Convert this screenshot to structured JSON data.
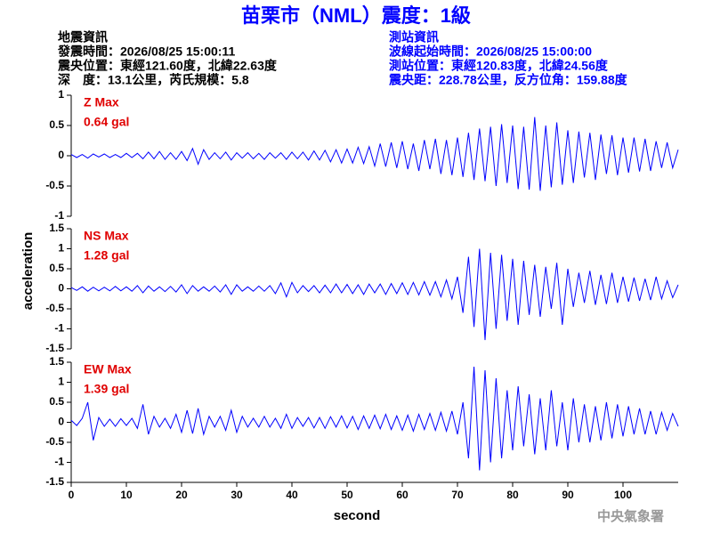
{
  "header": {
    "title": "苗栗市（NML）震度：1級",
    "left": [
      "地震資訊",
      "發震時間：2026/08/25 15:00:11",
      "震央位置：東經121.60度，北緯22.63度",
      "深　度：13.1公里，芮氏規模：5.8"
    ],
    "right": [
      "測站資訊",
      "波線起始時間：2026/08/25 15:00:00",
      "測站位置：東經120.83度，北緯24.56度",
      "震央距：228.78公里，反方位角：159.88度"
    ],
    "footer": "中央氣象署"
  },
  "chart_data": [
    {
      "type": "line",
      "annotations": [
        "Z Max",
        "0.64 gal"
      ],
      "annotation_color": "#e00000",
      "color": "#0000ff",
      "xlim": [
        0,
        110
      ],
      "ylim": [
        -1,
        1
      ],
      "yticks": [
        -1,
        -0.5,
        0,
        0.5,
        1
      ],
      "x": [
        0,
        1,
        2,
        3,
        4,
        5,
        6,
        7,
        8,
        9,
        10,
        11,
        12,
        13,
        14,
        15,
        16,
        17,
        18,
        19,
        20,
        21,
        22,
        23,
        24,
        25,
        26,
        27,
        28,
        29,
        30,
        31,
        32,
        33,
        34,
        35,
        36,
        37,
        38,
        39,
        40,
        41,
        42,
        43,
        44,
        45,
        46,
        47,
        48,
        49,
        50,
        51,
        52,
        53,
        54,
        55,
        56,
        57,
        58,
        59,
        60,
        61,
        62,
        63,
        64,
        65,
        66,
        67,
        68,
        69,
        70,
        71,
        72,
        73,
        74,
        75,
        76,
        77,
        78,
        79,
        80,
        81,
        82,
        83,
        84,
        85,
        86,
        87,
        88,
        89,
        90,
        91,
        92,
        93,
        94,
        95,
        96,
        97,
        98,
        99,
        100,
        101,
        102,
        103,
        104,
        105,
        106,
        107,
        108,
        109,
        110
      ],
      "values": [
        0.02,
        -0.03,
        0.02,
        -0.04,
        0.03,
        -0.02,
        0.03,
        -0.03,
        0.02,
        -0.03,
        0.04,
        -0.03,
        0.04,
        -0.05,
        0.06,
        -0.05,
        0.07,
        -0.06,
        0.05,
        -0.06,
        0.07,
        -0.08,
        0.12,
        -0.14,
        0.1,
        -0.06,
        0.05,
        -0.05,
        0.06,
        -0.07,
        0.05,
        -0.04,
        0.05,
        -0.05,
        0.04,
        -0.06,
        0.05,
        -0.04,
        0.05,
        -0.06,
        0.06,
        -0.05,
        0.06,
        -0.07,
        0.08,
        -0.07,
        0.09,
        -0.1,
        0.1,
        -0.12,
        0.11,
        -0.12,
        0.14,
        -0.13,
        0.15,
        -0.17,
        0.2,
        -0.18,
        0.22,
        -0.2,
        0.24,
        -0.22,
        0.2,
        -0.25,
        0.26,
        -0.22,
        0.28,
        -0.3,
        0.26,
        -0.32,
        0.3,
        -0.35,
        0.38,
        -0.4,
        0.45,
        -0.42,
        0.48,
        -0.5,
        0.52,
        -0.45,
        0.5,
        -0.55,
        0.48,
        -0.56,
        0.64,
        -0.58,
        0.5,
        -0.52,
        0.55,
        -0.48,
        0.42,
        -0.45,
        0.4,
        -0.36,
        0.38,
        -0.4,
        0.35,
        -0.3,
        0.34,
        -0.32,
        0.3,
        -0.28,
        0.3,
        -0.26,
        0.28,
        -0.25,
        0.24,
        -0.2,
        0.22,
        -0.2,
        0.1
      ]
    },
    {
      "type": "line",
      "ylabel": "acceleration",
      "annotations": [
        "NS Max",
        "1.28 gal"
      ],
      "annotation_color": "#e00000",
      "color": "#0000ff",
      "xlim": [
        0,
        110
      ],
      "ylim": [
        -1.5,
        1.5
      ],
      "yticks": [
        -1.5,
        -1,
        -0.5,
        0,
        0.5,
        1,
        1.5
      ],
      "x": [
        0,
        1,
        2,
        3,
        4,
        5,
        6,
        7,
        8,
        9,
        10,
        11,
        12,
        13,
        14,
        15,
        16,
        17,
        18,
        19,
        20,
        21,
        22,
        23,
        24,
        25,
        26,
        27,
        28,
        29,
        30,
        31,
        32,
        33,
        34,
        35,
        36,
        37,
        38,
        39,
        40,
        41,
        42,
        43,
        44,
        45,
        46,
        47,
        48,
        49,
        50,
        51,
        52,
        53,
        54,
        55,
        56,
        57,
        58,
        59,
        60,
        61,
        62,
        63,
        64,
        65,
        66,
        67,
        68,
        69,
        70,
        71,
        72,
        73,
        74,
        75,
        76,
        77,
        78,
        79,
        80,
        81,
        82,
        83,
        84,
        85,
        86,
        87,
        88,
        89,
        90,
        91,
        92,
        93,
        94,
        95,
        96,
        97,
        98,
        99,
        100,
        101,
        102,
        103,
        104,
        105,
        106,
        107,
        108,
        109,
        110
      ],
      "values": [
        0.03,
        -0.04,
        0.05,
        -0.06,
        0.04,
        -0.05,
        0.04,
        -0.05,
        0.06,
        -0.05,
        0.05,
        -0.06,
        0.08,
        -0.1,
        0.07,
        -0.06,
        0.05,
        -0.07,
        0.06,
        -0.08,
        0.1,
        -0.12,
        0.08,
        -0.06,
        0.05,
        -0.06,
        0.07,
        -0.08,
        0.1,
        -0.14,
        0.1,
        -0.06,
        0.05,
        -0.06,
        0.07,
        -0.06,
        0.08,
        -0.12,
        0.15,
        -0.2,
        0.16,
        -0.1,
        0.08,
        -0.07,
        0.08,
        -0.1,
        0.09,
        -0.1,
        0.12,
        -0.1,
        0.11,
        -0.12,
        0.1,
        -0.14,
        0.12,
        -0.1,
        0.12,
        -0.14,
        0.13,
        -0.12,
        0.15,
        -0.14,
        0.16,
        -0.15,
        0.18,
        -0.16,
        0.18,
        -0.2,
        0.22,
        -0.25,
        0.3,
        -0.6,
        0.8,
        -0.95,
        1.0,
        -1.28,
        0.9,
        -1.0,
        0.85,
        -0.8,
        0.75,
        -0.9,
        0.7,
        -0.65,
        0.6,
        -0.7,
        0.55,
        -0.5,
        0.65,
        -0.9,
        0.5,
        -0.45,
        0.4,
        -0.35,
        0.45,
        -0.4,
        0.35,
        -0.38,
        0.4,
        -0.35,
        0.3,
        -0.32,
        0.28,
        -0.3,
        0.25,
        -0.28,
        0.3,
        -0.25,
        0.2,
        -0.22,
        0.1
      ]
    },
    {
      "type": "line",
      "xlabel": "second",
      "annotations": [
        "EW Max",
        "1.39 gal"
      ],
      "annotation_color": "#e00000",
      "color": "#0000ff",
      "xlim": [
        0,
        110
      ],
      "xticks": [
        0,
        10,
        20,
        30,
        40,
        50,
        60,
        70,
        80,
        90,
        100
      ],
      "ylim": [
        -1.5,
        1.5
      ],
      "yticks": [
        -1.5,
        -1,
        -0.5,
        0,
        0.5,
        1,
        1.5
      ],
      "x": [
        0,
        1,
        2,
        3,
        4,
        5,
        6,
        7,
        8,
        9,
        10,
        11,
        12,
        13,
        14,
        15,
        16,
        17,
        18,
        19,
        20,
        21,
        22,
        23,
        24,
        25,
        26,
        27,
        28,
        29,
        30,
        31,
        32,
        33,
        34,
        35,
        36,
        37,
        38,
        39,
        40,
        41,
        42,
        43,
        44,
        45,
        46,
        47,
        48,
        49,
        50,
        51,
        52,
        53,
        54,
        55,
        56,
        57,
        58,
        59,
        60,
        61,
        62,
        63,
        64,
        65,
        66,
        67,
        68,
        69,
        70,
        71,
        72,
        73,
        74,
        75,
        76,
        77,
        78,
        79,
        80,
        81,
        82,
        83,
        84,
        85,
        86,
        87,
        88,
        89,
        90,
        91,
        92,
        93,
        94,
        95,
        96,
        97,
        98,
        99,
        100,
        101,
        102,
        103,
        104,
        105,
        106,
        107,
        108,
        109,
        110
      ],
      "values": [
        0.05,
        -0.08,
        0.1,
        0.5,
        -0.45,
        0.12,
        -0.1,
        0.08,
        -0.1,
        0.09,
        -0.08,
        0.1,
        -0.15,
        0.45,
        -0.3,
        0.15,
        -0.12,
        0.1,
        -0.15,
        0.2,
        -0.25,
        0.3,
        -0.28,
        0.35,
        -0.3,
        0.15,
        -0.12,
        0.15,
        -0.2,
        0.3,
        -0.25,
        0.15,
        -0.12,
        0.1,
        -0.12,
        0.15,
        -0.12,
        0.1,
        -0.15,
        0.2,
        -0.15,
        0.12,
        -0.1,
        0.12,
        -0.14,
        0.12,
        -0.15,
        0.14,
        -0.12,
        0.16,
        -0.14,
        0.15,
        -0.18,
        0.16,
        -0.15,
        0.18,
        -0.16,
        0.2,
        -0.18,
        0.16,
        -0.2,
        0.18,
        -0.22,
        0.2,
        -0.18,
        0.22,
        -0.2,
        0.25,
        -0.22,
        0.28,
        -0.3,
        0.5,
        -0.9,
        1.39,
        -1.2,
        1.3,
        -1.0,
        1.1,
        -0.9,
        0.8,
        -0.7,
        0.9,
        -0.6,
        0.7,
        -0.8,
        0.6,
        -0.7,
        0.8,
        -0.6,
        0.5,
        -0.7,
        0.6,
        -0.5,
        0.45,
        -0.5,
        0.4,
        -0.45,
        0.5,
        -0.4,
        0.45,
        -0.35,
        0.4,
        -0.3,
        0.35,
        -0.3,
        0.28,
        -0.3,
        0.25,
        -0.2,
        0.22,
        -0.1
      ]
    }
  ]
}
